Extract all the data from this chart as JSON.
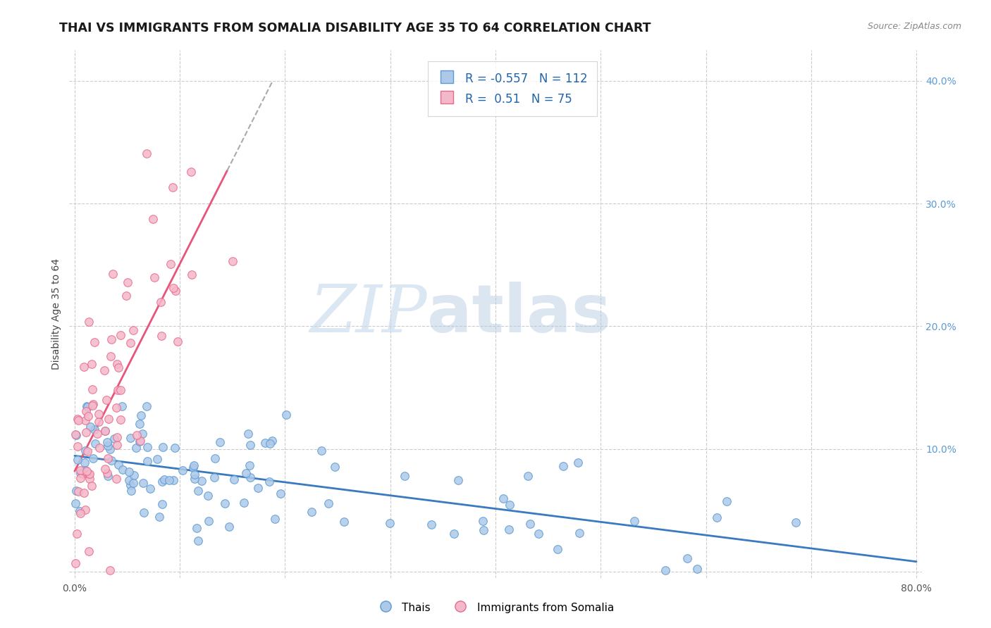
{
  "title": "THAI VS IMMIGRANTS FROM SOMALIA DISABILITY AGE 35 TO 64 CORRELATION CHART",
  "source": "Source: ZipAtlas.com",
  "ylabel": "Disability Age 35 to 64",
  "xlim": [
    -0.005,
    0.805
  ],
  "ylim": [
    -0.005,
    0.425
  ],
  "x_tick_positions": [
    0.0,
    0.1,
    0.2,
    0.3,
    0.4,
    0.5,
    0.6,
    0.7,
    0.8
  ],
  "x_tick_labels": [
    "0.0%",
    "",
    "",
    "",
    "",
    "",
    "",
    "",
    "80.0%"
  ],
  "y_tick_positions": [
    0.0,
    0.1,
    0.2,
    0.3,
    0.4
  ],
  "y_tick_labels": [
    "",
    "10.0%",
    "20.0%",
    "30.0%",
    "40.0%"
  ],
  "legend_blue_label": "Thais",
  "legend_pink_label": "Immigrants from Somalia",
  "R_blue": -0.557,
  "N_blue": 112,
  "R_pink": 0.51,
  "N_pink": 75,
  "blue_fill_color": "#aec9e8",
  "blue_edge_color": "#5b9bd5",
  "pink_fill_color": "#f4b8cb",
  "pink_edge_color": "#e86a8a",
  "blue_line_color": "#3a7abf",
  "pink_line_color": "#e8547a",
  "watermark_zip": "ZIP",
  "watermark_atlas": "atlas",
  "title_fontsize": 12.5,
  "axis_label_fontsize": 10,
  "tick_fontsize": 10,
  "dot_size": 70
}
